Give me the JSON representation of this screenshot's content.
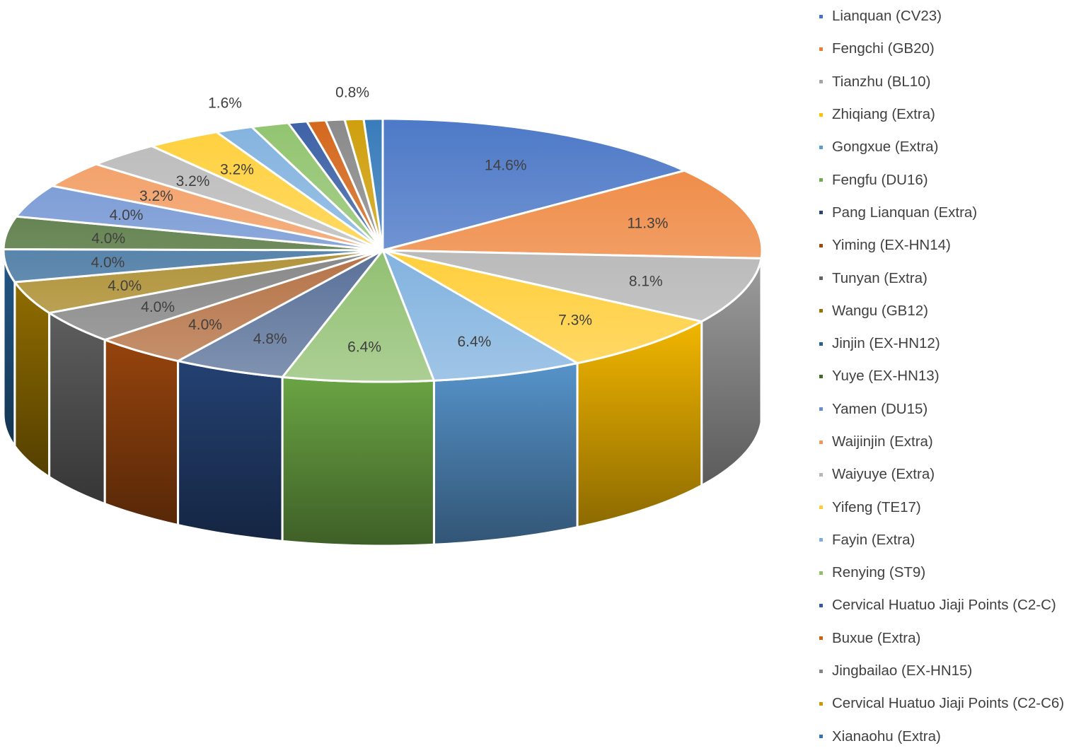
{
  "chart_data": {
    "type": "pie",
    "style": "3d",
    "legend_position": "right",
    "slices": [
      {
        "label": "Lianquan (CV23)",
        "value": 14.6,
        "data_label": "14.6%",
        "color": "#4472C4"
      },
      {
        "label": "Fengchi (GB20)",
        "value": 11.3,
        "data_label": "11.3%",
        "color": "#ED7D31"
      },
      {
        "label": "Tianzhu (BL10)",
        "value": 8.1,
        "data_label": "8.1%",
        "color": "#A5A5A5"
      },
      {
        "label": "Zhiqiang (Extra)",
        "value": 7.3,
        "data_label": "7.3%",
        "color": "#FFC000"
      },
      {
        "label": "Gongxue (Extra)",
        "value": 6.4,
        "data_label": "6.4%",
        "color": "#5B9BD5"
      },
      {
        "label": "Fengfu (DU16)",
        "value": 6.4,
        "data_label": "6.4%",
        "color": "#70AD47"
      },
      {
        "label": "Pang Lianquan (Extra)",
        "value": 4.8,
        "data_label": "4.8%",
        "color": "#264478"
      },
      {
        "label": "Yiming (EX-HN14)",
        "value": 4.0,
        "data_label": "4.0%",
        "color": "#9E480E"
      },
      {
        "label": "Tunyan (Extra)",
        "value": 4.0,
        "data_label": "4.0%",
        "color": "#636363"
      },
      {
        "label": "Wangu (GB12)",
        "value": 4.0,
        "data_label": "4.0%",
        "color": "#997300"
      },
      {
        "label": "Jinjin (EX-HN12)",
        "value": 4.0,
        "data_label": "4.0%",
        "color": "#255E91"
      },
      {
        "label": "Yuye (EX-HN13)",
        "value": 4.0,
        "data_label": "4.0%",
        "color": "#43682B"
      },
      {
        "label": "Yamen (DU15)",
        "value": 4.0,
        "data_label": "4.0%",
        "color": "#698ED0"
      },
      {
        "label": "Waijinjin (Extra)",
        "value": 3.2,
        "data_label": "3.2%",
        "color": "#F1975A"
      },
      {
        "label": "Waiyuye (Extra)",
        "value": 3.2,
        "data_label": "3.2%",
        "color": "#B7B7B7"
      },
      {
        "label": "Yifeng (TE17)",
        "value": 3.2,
        "data_label": "3.2%",
        "color": "#FFCD33"
      },
      {
        "label": "Fayin (Extra)",
        "value": 1.6,
        "data_label": "1.6%",
        "color": "#7CAFDD"
      },
      {
        "label": "Renying (ST9)",
        "value": 1.6,
        "data_label": "",
        "color": "#8CC168"
      },
      {
        "label": "Cervical Huatuo Jiaji Points (C2-C)",
        "value": 0.8,
        "data_label": "",
        "color": "#335AA1"
      },
      {
        "label": "Buxue (Extra)",
        "value": 0.8,
        "data_label": "",
        "color": "#D26012"
      },
      {
        "label": "Jingbailao (EX-HN15)",
        "value": 0.8,
        "data_label": "",
        "color": "#848484"
      },
      {
        "label": "Cervical Huatuo Jiaji Points (C2-C6)",
        "value": 0.8,
        "data_label": "0.8%",
        "color": "#CC9A00"
      },
      {
        "label": "Xianaohu (Extra)",
        "value": 0.8,
        "data_label": "",
        "color": "#2E75B6"
      }
    ]
  }
}
